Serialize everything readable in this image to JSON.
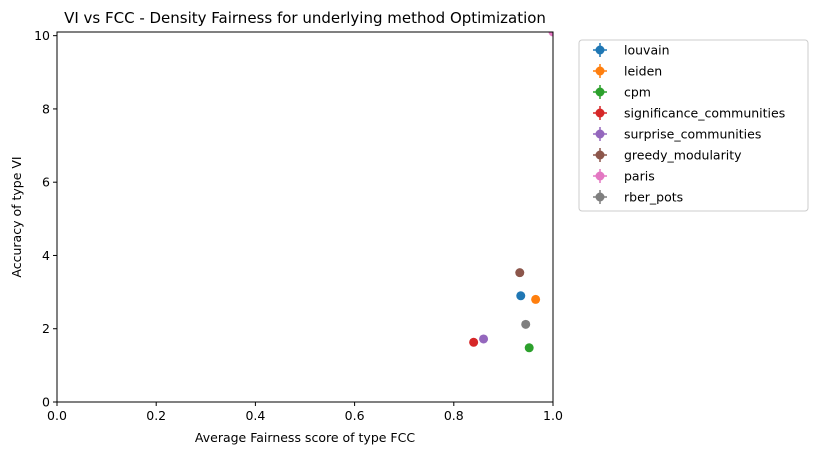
{
  "chart_data": {
    "type": "scatter",
    "title": "VI vs FCC - Density Fairness for underlying method Optimization",
    "xlabel": "Average Fairness score of type FCC",
    "ylabel": "Accuracy of type VI",
    "xlim": [
      0,
      1
    ],
    "ylim": [
      0,
      10.1
    ],
    "xticks": [
      "0.0",
      "0.2",
      "0.4",
      "0.6",
      "0.8",
      "1.0"
    ],
    "yticks": [
      "0",
      "2",
      "4",
      "6",
      "8",
      "10"
    ],
    "grid": false,
    "legend_position": "outside-right",
    "series": [
      {
        "name": "louvain",
        "color": "#1f77b4",
        "x": 0.935,
        "y": 2.9
      },
      {
        "name": "leiden",
        "color": "#ff7f0e",
        "x": 0.965,
        "y": 2.8
      },
      {
        "name": "cpm",
        "color": "#2ca02c",
        "x": 0.952,
        "y": 1.48
      },
      {
        "name": "significance_communities",
        "color": "#d62728",
        "x": 0.84,
        "y": 1.63
      },
      {
        "name": "surprise_communities",
        "color": "#9467bd",
        "x": 0.86,
        "y": 1.72
      },
      {
        "name": "greedy_modularity",
        "color": "#8c564b",
        "x": 0.933,
        "y": 3.53
      },
      {
        "name": "paris",
        "color": "#e377c2",
        "x": 1.0,
        "y": 10.1
      },
      {
        "name": "rber_pots",
        "color": "#7f7f7f",
        "x": 0.945,
        "y": 2.12
      }
    ]
  }
}
